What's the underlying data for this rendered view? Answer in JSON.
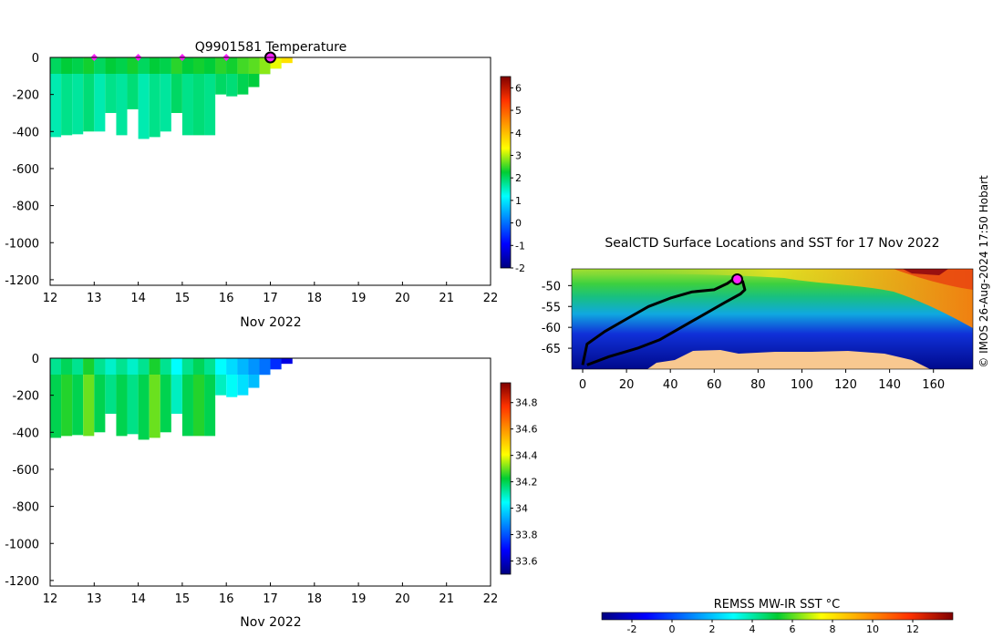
{
  "chart_data": [
    {
      "type": "heatmap",
      "id": "temperature_section",
      "title": "Q9901581  Temperature",
      "xlabel": "Nov 2022",
      "ylabel": "",
      "xlim": [
        12,
        22
      ],
      "ylim": [
        -1230,
        0
      ],
      "xticks": [
        "12",
        "13",
        "14",
        "15",
        "16",
        "17",
        "18",
        "19",
        "20",
        "21",
        "22"
      ],
      "yticks": [
        "0",
        "-200",
        "-400",
        "-600",
        "-800",
        "-1000",
        "-1200"
      ],
      "colorbar": {
        "range": [
          -2,
          6.5
        ],
        "ticks": [
          "-2",
          "-1",
          "0",
          "1",
          "2",
          "3",
          "4",
          "5",
          "6"
        ]
      },
      "profile_markers_days": [
        13,
        14,
        15,
        16
      ],
      "current_profile_day": 17,
      "profiles": [
        {
          "day": 12.0,
          "depth": 430,
          "value": 1.6
        },
        {
          "day": 12.25,
          "depth": 420,
          "value": 1.8
        },
        {
          "day": 12.5,
          "depth": 415,
          "value": 1.7
        },
        {
          "day": 12.75,
          "depth": 400,
          "value": 1.9
        },
        {
          "day": 13.0,
          "depth": 400,
          "value": 1.6
        },
        {
          "day": 13.25,
          "depth": 300,
          "value": 1.8
        },
        {
          "day": 13.5,
          "depth": 420,
          "value": 1.7
        },
        {
          "day": 13.75,
          "depth": 280,
          "value": 1.9
        },
        {
          "day": 14.0,
          "depth": 440,
          "value": 1.6
        },
        {
          "day": 14.25,
          "depth": 430,
          "value": 1.8
        },
        {
          "day": 14.5,
          "depth": 400,
          "value": 1.7
        },
        {
          "day": 14.75,
          "depth": 300,
          "value": 2.0
        },
        {
          "day": 15.0,
          "depth": 420,
          "value": 1.8
        },
        {
          "day": 15.25,
          "depth": 420,
          "value": 1.9
        },
        {
          "day": 15.5,
          "depth": 420,
          "value": 1.8
        },
        {
          "day": 15.75,
          "depth": 200,
          "value": 2.0
        },
        {
          "day": 16.0,
          "depth": 210,
          "value": 1.9
        },
        {
          "day": 16.25,
          "depth": 200,
          "value": 2.1
        },
        {
          "day": 16.5,
          "depth": 160,
          "value": 2.2
        },
        {
          "day": 16.75,
          "depth": 90,
          "value": 2.4
        },
        {
          "day": 17.0,
          "depth": 60,
          "value": 2.8
        },
        {
          "day": 17.25,
          "depth": 30,
          "value": 3.2
        }
      ]
    },
    {
      "type": "heatmap",
      "id": "salinity_section",
      "title": "",
      "xlabel": "Nov 2022",
      "ylabel": "",
      "xlim": [
        12,
        22
      ],
      "ylim": [
        -1230,
        0
      ],
      "xticks": [
        "12",
        "13",
        "14",
        "15",
        "16",
        "17",
        "18",
        "19",
        "20",
        "21",
        "22"
      ],
      "yticks": [
        "0",
        "-200",
        "-400",
        "-600",
        "-800",
        "-1000",
        "-1200"
      ],
      "colorbar": {
        "range": [
          33.5,
          34.95
        ],
        "ticks": [
          "33.6",
          "33.8",
          "34",
          "34.2",
          "34.4",
          "34.6",
          "34.8"
        ]
      },
      "profiles": [
        {
          "day": 12.0,
          "depth": 430,
          "value": 34.2
        },
        {
          "day": 12.25,
          "depth": 420,
          "value": 34.25
        },
        {
          "day": 12.5,
          "depth": 415,
          "value": 34.2
        },
        {
          "day": 12.75,
          "depth": 420,
          "value": 34.3
        },
        {
          "day": 13.0,
          "depth": 400,
          "value": 34.2
        },
        {
          "day": 13.25,
          "depth": 300,
          "value": 34.15
        },
        {
          "day": 13.5,
          "depth": 420,
          "value": 34.2
        },
        {
          "day": 13.75,
          "depth": 410,
          "value": 34.15
        },
        {
          "day": 14.0,
          "depth": 440,
          "value": 34.2
        },
        {
          "day": 14.25,
          "depth": 430,
          "value": 34.3
        },
        {
          "day": 14.5,
          "depth": 400,
          "value": 34.2
        },
        {
          "day": 14.75,
          "depth": 300,
          "value": 34.1
        },
        {
          "day": 15.0,
          "depth": 420,
          "value": 34.2
        },
        {
          "day": 15.25,
          "depth": 420,
          "value": 34.25
        },
        {
          "day": 15.5,
          "depth": 420,
          "value": 34.2
        },
        {
          "day": 15.75,
          "depth": 200,
          "value": 34.1
        },
        {
          "day": 16.0,
          "depth": 210,
          "value": 34.05
        },
        {
          "day": 16.25,
          "depth": 200,
          "value": 34.0
        },
        {
          "day": 16.5,
          "depth": 160,
          "value": 33.95
        },
        {
          "day": 16.75,
          "depth": 90,
          "value": 33.9
        },
        {
          "day": 17.0,
          "depth": 60,
          "value": 33.8
        },
        {
          "day": 17.25,
          "depth": 30,
          "value": 33.7
        }
      ]
    },
    {
      "type": "map",
      "id": "sst_map",
      "title": "SealCTD Surface Locations and SST for 17 Nov 2022",
      "xlim": [
        -5,
        178
      ],
      "ylim": [
        -70,
        -46
      ],
      "xticks": [
        "0",
        "20",
        "40",
        "60",
        "80",
        "100",
        "120",
        "140",
        "160"
      ],
      "yticks": [
        "-50",
        "-55",
        "-60",
        "-65"
      ],
      "track": [
        [
          0,
          -69
        ],
        [
          2,
          -64
        ],
        [
          10,
          -61
        ],
        [
          20,
          -58
        ],
        [
          30,
          -55
        ],
        [
          40,
          -53
        ],
        [
          50,
          -51.5
        ],
        [
          60,
          -51
        ],
        [
          66,
          -49.5
        ],
        [
          70,
          -48
        ],
        [
          73,
          -49
        ],
        [
          74,
          -51
        ],
        [
          72,
          -52
        ],
        [
          65,
          -54
        ],
        [
          55,
          -57
        ],
        [
          45,
          -60
        ],
        [
          35,
          -63
        ],
        [
          25,
          -65
        ],
        [
          12,
          -67
        ],
        [
          2,
          -69
        ]
      ],
      "current_location": [
        70.5,
        -48.5
      ],
      "colorbar": {
        "label": "REMSS MW-IR SST °C",
        "range": [
          -3.5,
          14
        ],
        "ticks": [
          "-2",
          "0",
          "2",
          "4",
          "6",
          "8",
          "10",
          "12"
        ]
      }
    }
  ],
  "credit": "© IMOS 26-Aug-2024 17:50 Hobart"
}
